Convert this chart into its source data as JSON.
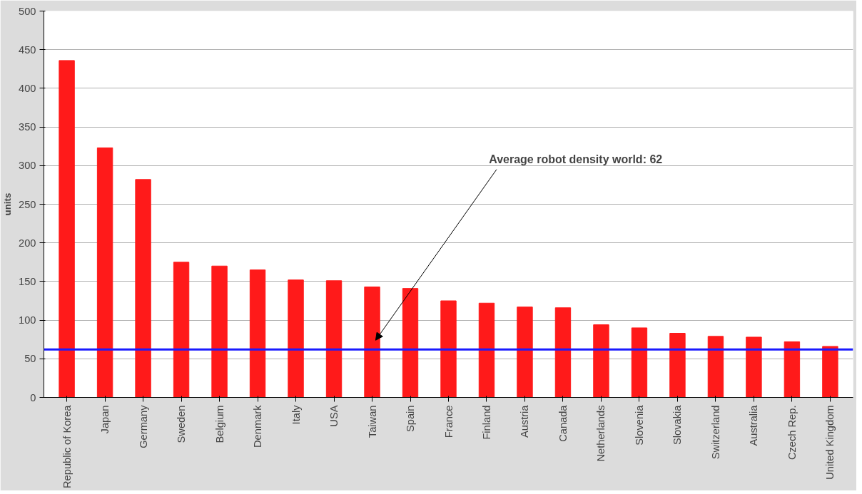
{
  "chart_data": {
    "type": "bar",
    "ylabel": "units",
    "categories": [
      "Republic of Korea",
      "Japan",
      "Germany",
      "Sweden",
      "Belgium",
      "Denmark",
      "Italy",
      "USA",
      "Taiwan",
      "Spain",
      "France",
      "Finland",
      "Austria",
      "Canada",
      "Netherlands",
      "Slovenia",
      "Slovakia",
      "Switzerland",
      "Australia",
      "Czech Rep.",
      "United Kingdom"
    ],
    "values": [
      436,
      323,
      282,
      175,
      170,
      165,
      152,
      151,
      143,
      141,
      125,
      122,
      117,
      116,
      94,
      90,
      83,
      79,
      78,
      72,
      66
    ],
    "color": "#ff1a1a",
    "ylim": [
      0,
      500
    ],
    "yticks": [
      0,
      50,
      100,
      150,
      200,
      250,
      300,
      350,
      400,
      450,
      500
    ],
    "grid": "y",
    "ref_lines": [
      {
        "axis": "y",
        "value": 62,
        "color": "#1a1aff"
      }
    ],
    "annotations": [
      "Average robot density world: 62"
    ]
  }
}
